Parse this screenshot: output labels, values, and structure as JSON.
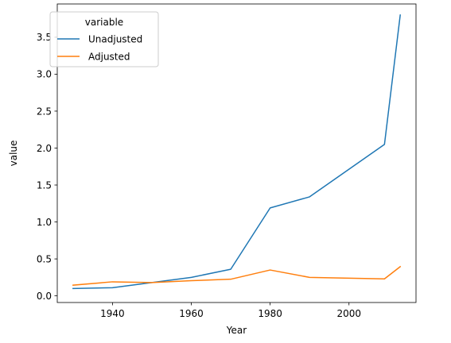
{
  "chart_data": {
    "type": "line",
    "xlabel": "Year",
    "ylabel": "value",
    "xlim": [
      1926,
      2017
    ],
    "ylim": [
      -0.09,
      3.95
    ],
    "xticks": [
      1940,
      1960,
      1980,
      2000
    ],
    "yticks": [
      0.0,
      0.5,
      1.0,
      1.5,
      2.0,
      2.5,
      3.0,
      3.5
    ],
    "ytick_labels": [
      "0.0",
      "0.5",
      "1.0",
      "1.5",
      "2.0",
      "2.5",
      "3.0",
      "3.5"
    ],
    "grid": false,
    "legend": {
      "title": "variable",
      "placement": "top-left"
    },
    "series": [
      {
        "name": "Unadjusted",
        "color": "#1f77b4",
        "x": [
          1930,
          1940,
          1950,
          1960,
          1970,
          1980,
          1990,
          2009,
          2013
        ],
        "y": [
          0.1,
          0.11,
          0.18,
          0.25,
          0.36,
          1.19,
          1.34,
          2.05,
          3.8
        ]
      },
      {
        "name": "Adjusted",
        "color": "#ff7f0e",
        "x": [
          1930,
          1940,
          1950,
          1960,
          1970,
          1980,
          1990,
          2009,
          2013
        ],
        "y": [
          0.145,
          0.19,
          0.18,
          0.205,
          0.225,
          0.35,
          0.25,
          0.23,
          0.395
        ]
      }
    ]
  }
}
